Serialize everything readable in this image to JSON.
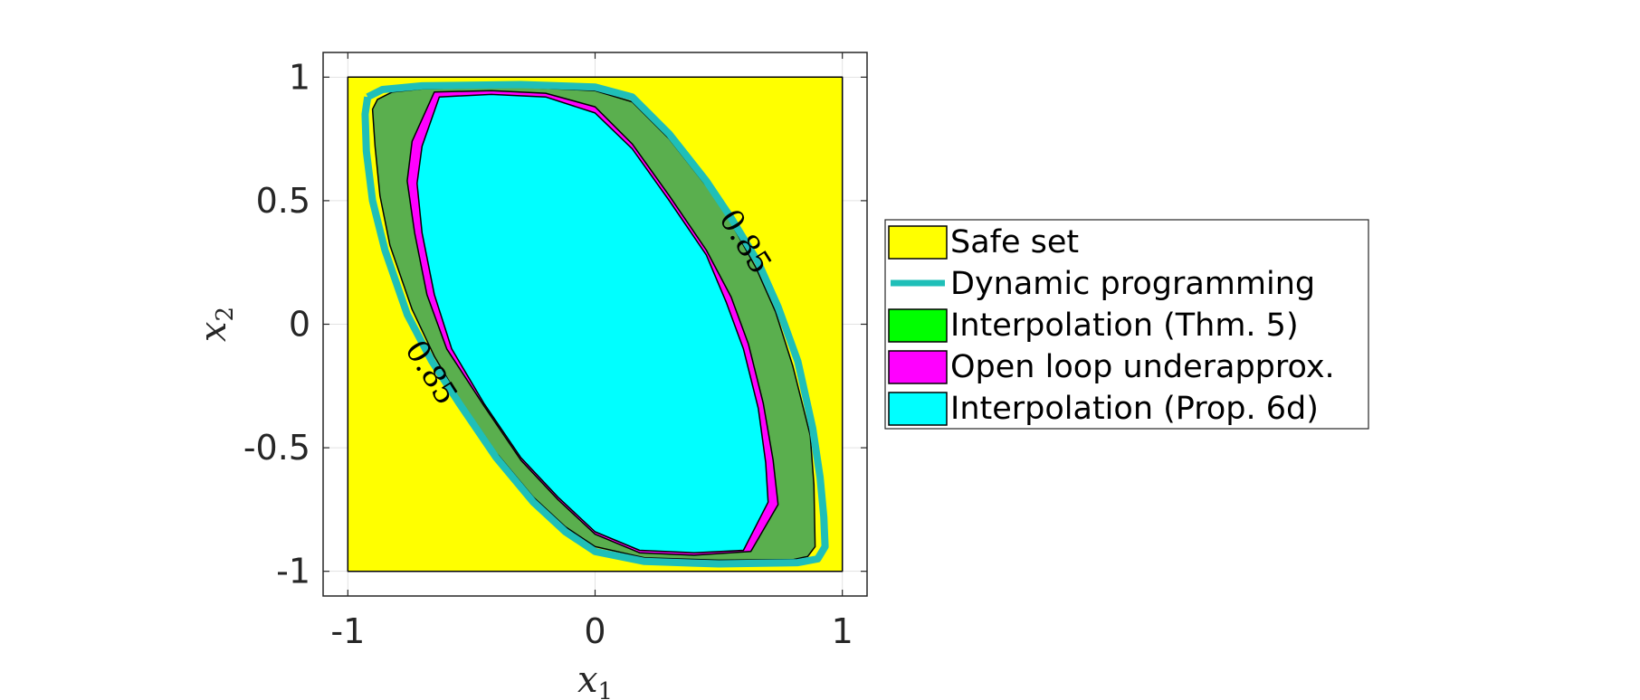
{
  "chart_data": {
    "type": "area",
    "title": "",
    "xlabel": "x",
    "xlabel_sub": "1",
    "ylabel": "x",
    "ylabel_sub": "2",
    "xlim": [
      -1.1,
      1.1
    ],
    "ylim": [
      -1.1,
      1.1
    ],
    "xticks": [
      -1,
      0,
      1
    ],
    "yticks": [
      -1,
      -0.5,
      0,
      0.5,
      1
    ],
    "xtick_labels": [
      "-1",
      "0",
      "1"
    ],
    "ytick_labels": [
      "-1",
      "-0.5",
      "0",
      "0.5",
      "1"
    ],
    "grid": true,
    "legend_position": "right",
    "contour_labels": [
      {
        "text": "0.85",
        "x": 0.6,
        "y": 0.33,
        "angle": 58
      },
      {
        "text": "0.85",
        "x": -0.67,
        "y": -0.2,
        "angle": 58
      }
    ],
    "series": [
      {
        "name": "Safe set",
        "style": "fill",
        "color": "#ffff00",
        "points": [
          [
            -1,
            -1
          ],
          [
            1,
            -1
          ],
          [
            1,
            1
          ],
          [
            -1,
            1
          ]
        ]
      },
      {
        "name": "Dynamic programming",
        "style": "line",
        "color": "#1fbfb8",
        "points": [
          [
            -0.92,
            0.92
          ],
          [
            -0.86,
            0.95
          ],
          [
            -0.7,
            0.965
          ],
          [
            -0.3,
            0.97
          ],
          [
            0,
            0.96
          ],
          [
            0.15,
            0.92
          ],
          [
            0.3,
            0.77
          ],
          [
            0.45,
            0.58
          ],
          [
            0.55,
            0.43
          ],
          [
            0.66,
            0.25
          ],
          [
            0.74,
            0.07
          ],
          [
            0.82,
            -0.15
          ],
          [
            0.88,
            -0.42
          ],
          [
            0.91,
            -0.62
          ],
          [
            0.925,
            -0.78
          ],
          [
            0.93,
            -0.9
          ],
          [
            0.9,
            -0.95
          ],
          [
            0.82,
            -0.965
          ],
          [
            0.5,
            -0.97
          ],
          [
            0.2,
            -0.96
          ],
          [
            0,
            -0.92
          ],
          [
            -0.12,
            -0.84
          ],
          [
            -0.25,
            -0.72
          ],
          [
            -0.4,
            -0.54
          ],
          [
            -0.55,
            -0.32
          ],
          [
            -0.66,
            -0.15
          ],
          [
            -0.76,
            0.04
          ],
          [
            -0.85,
            0.3
          ],
          [
            -0.9,
            0.5
          ],
          [
            -0.925,
            0.7
          ],
          [
            -0.93,
            0.85
          ],
          [
            -0.92,
            0.92
          ]
        ]
      },
      {
        "name": "Interpolation (Thm. 5)",
        "style": "fill",
        "color": "#5aaf4e",
        "points": [
          [
            -0.88,
            0.91
          ],
          [
            -0.82,
            0.94
          ],
          [
            -0.7,
            0.953
          ],
          [
            -0.3,
            0.96
          ],
          [
            0,
            0.945
          ],
          [
            0.15,
            0.9
          ],
          [
            0.3,
            0.75
          ],
          [
            0.45,
            0.56
          ],
          [
            0.55,
            0.41
          ],
          [
            0.65,
            0.23
          ],
          [
            0.73,
            0.05
          ],
          [
            0.8,
            -0.17
          ],
          [
            0.87,
            -0.45
          ],
          [
            0.885,
            -0.65
          ],
          [
            0.89,
            -0.9
          ],
          [
            0.86,
            -0.94
          ],
          [
            0.8,
            -0.953
          ],
          [
            0.5,
            -0.955
          ],
          [
            0.2,
            -0.945
          ],
          [
            0.0,
            -0.9
          ],
          [
            -0.12,
            -0.82
          ],
          [
            -0.25,
            -0.7
          ],
          [
            -0.4,
            -0.52
          ],
          [
            -0.55,
            -0.3
          ],
          [
            -0.65,
            -0.13
          ],
          [
            -0.74,
            0.06
          ],
          [
            -0.83,
            0.32
          ],
          [
            -0.87,
            0.52
          ],
          [
            -0.89,
            0.72
          ],
          [
            -0.9,
            0.87
          ]
        ]
      },
      {
        "name": "Open loop underapprox.",
        "style": "fill",
        "color": "#ff00ff",
        "points": [
          [
            -0.74,
            0.74
          ],
          [
            -0.65,
            0.94
          ],
          [
            -0.42,
            0.945
          ],
          [
            -0.2,
            0.935
          ],
          [
            0,
            0.88
          ],
          [
            0.15,
            0.73
          ],
          [
            0.3,
            0.52
          ],
          [
            0.45,
            0.3
          ],
          [
            0.55,
            0.11
          ],
          [
            0.62,
            -0.08
          ],
          [
            0.68,
            -0.32
          ],
          [
            0.72,
            -0.55
          ],
          [
            0.74,
            -0.73
          ],
          [
            0.63,
            -0.92
          ],
          [
            0.4,
            -0.935
          ],
          [
            0.18,
            -0.925
          ],
          [
            0,
            -0.85
          ],
          [
            -0.15,
            -0.71
          ],
          [
            -0.3,
            -0.55
          ],
          [
            -0.45,
            -0.33
          ],
          [
            -0.6,
            -0.1
          ],
          [
            -0.68,
            0.12
          ],
          [
            -0.73,
            0.37
          ],
          [
            -0.76,
            0.58
          ]
        ]
      },
      {
        "name": "Interpolation (Prop. 6d)",
        "style": "fill",
        "color": "#00ffff",
        "points": [
          [
            -0.7,
            0.72
          ],
          [
            -0.63,
            0.92
          ],
          [
            -0.42,
            0.93
          ],
          [
            -0.2,
            0.92
          ],
          [
            0,
            0.855
          ],
          [
            0.15,
            0.71
          ],
          [
            0.3,
            0.5
          ],
          [
            0.45,
            0.28
          ],
          [
            0.53,
            0.09
          ],
          [
            0.6,
            -0.1
          ],
          [
            0.66,
            -0.34
          ],
          [
            0.69,
            -0.56
          ],
          [
            0.7,
            -0.72
          ],
          [
            0.6,
            -0.915
          ],
          [
            0.4,
            -0.925
          ],
          [
            0.18,
            -0.915
          ],
          [
            0.0,
            -0.84
          ],
          [
            -0.15,
            -0.7
          ],
          [
            -0.3,
            -0.54
          ],
          [
            -0.45,
            -0.32
          ],
          [
            -0.58,
            -0.1
          ],
          [
            -0.65,
            0.12
          ],
          [
            -0.7,
            0.37
          ],
          [
            -0.72,
            0.57
          ]
        ]
      }
    ]
  }
}
